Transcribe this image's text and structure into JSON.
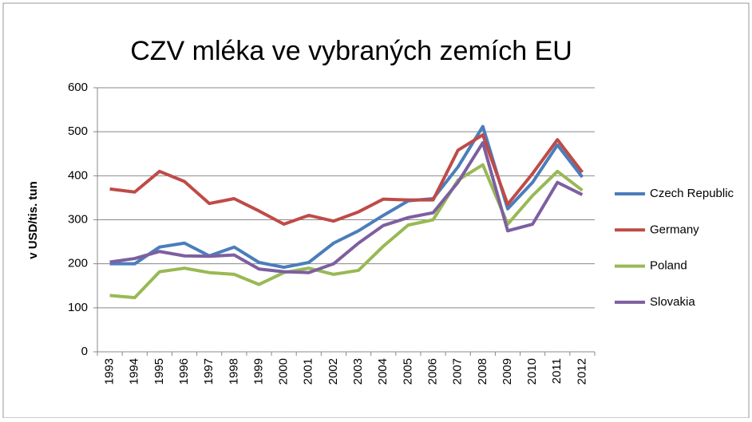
{
  "chart_data": {
    "type": "line",
    "title": "CZV mléka ve vybraných zemích EU",
    "y_label": "v USD/tis. tun",
    "categories": [
      "1993",
      "1994",
      "1995",
      "1996",
      "1997",
      "1998",
      "1999",
      "2000",
      "2001",
      "2002",
      "2003",
      "2004",
      "2005",
      "2006",
      "2007",
      "2008",
      "2009",
      "2010",
      "2011",
      "2012"
    ],
    "series": [
      {
        "name": "Czech Republic",
        "color": "#4a7ebb",
        "values": [
          200,
          200,
          238,
          247,
          218,
          238,
          203,
          192,
          203,
          247,
          275,
          310,
          343,
          348,
          420,
          512,
          325,
          385,
          470,
          397
        ]
      },
      {
        "name": "Germany",
        "color": "#be4b48",
        "values": [
          370,
          363,
          410,
          387,
          337,
          348,
          320,
          290,
          310,
          297,
          318,
          347,
          345,
          345,
          458,
          493,
          335,
          405,
          482,
          408
        ]
      },
      {
        "name": "Poland",
        "color": "#98b954",
        "values": [
          128,
          123,
          182,
          190,
          180,
          176,
          153,
          180,
          190,
          176,
          185,
          240,
          288,
          300,
          390,
          425,
          290,
          355,
          410,
          367
        ]
      },
      {
        "name": "Slovakia",
        "color": "#7d5fa0",
        "values": [
          204,
          212,
          228,
          218,
          217,
          220,
          188,
          182,
          180,
          200,
          247,
          287,
          305,
          316,
          385,
          475,
          275,
          290,
          385,
          357
        ]
      }
    ],
    "ylim": [
      0,
      600
    ],
    "yticks": [
      0,
      100,
      200,
      300,
      400,
      500,
      600
    ],
    "grid": true,
    "legend": "right"
  }
}
